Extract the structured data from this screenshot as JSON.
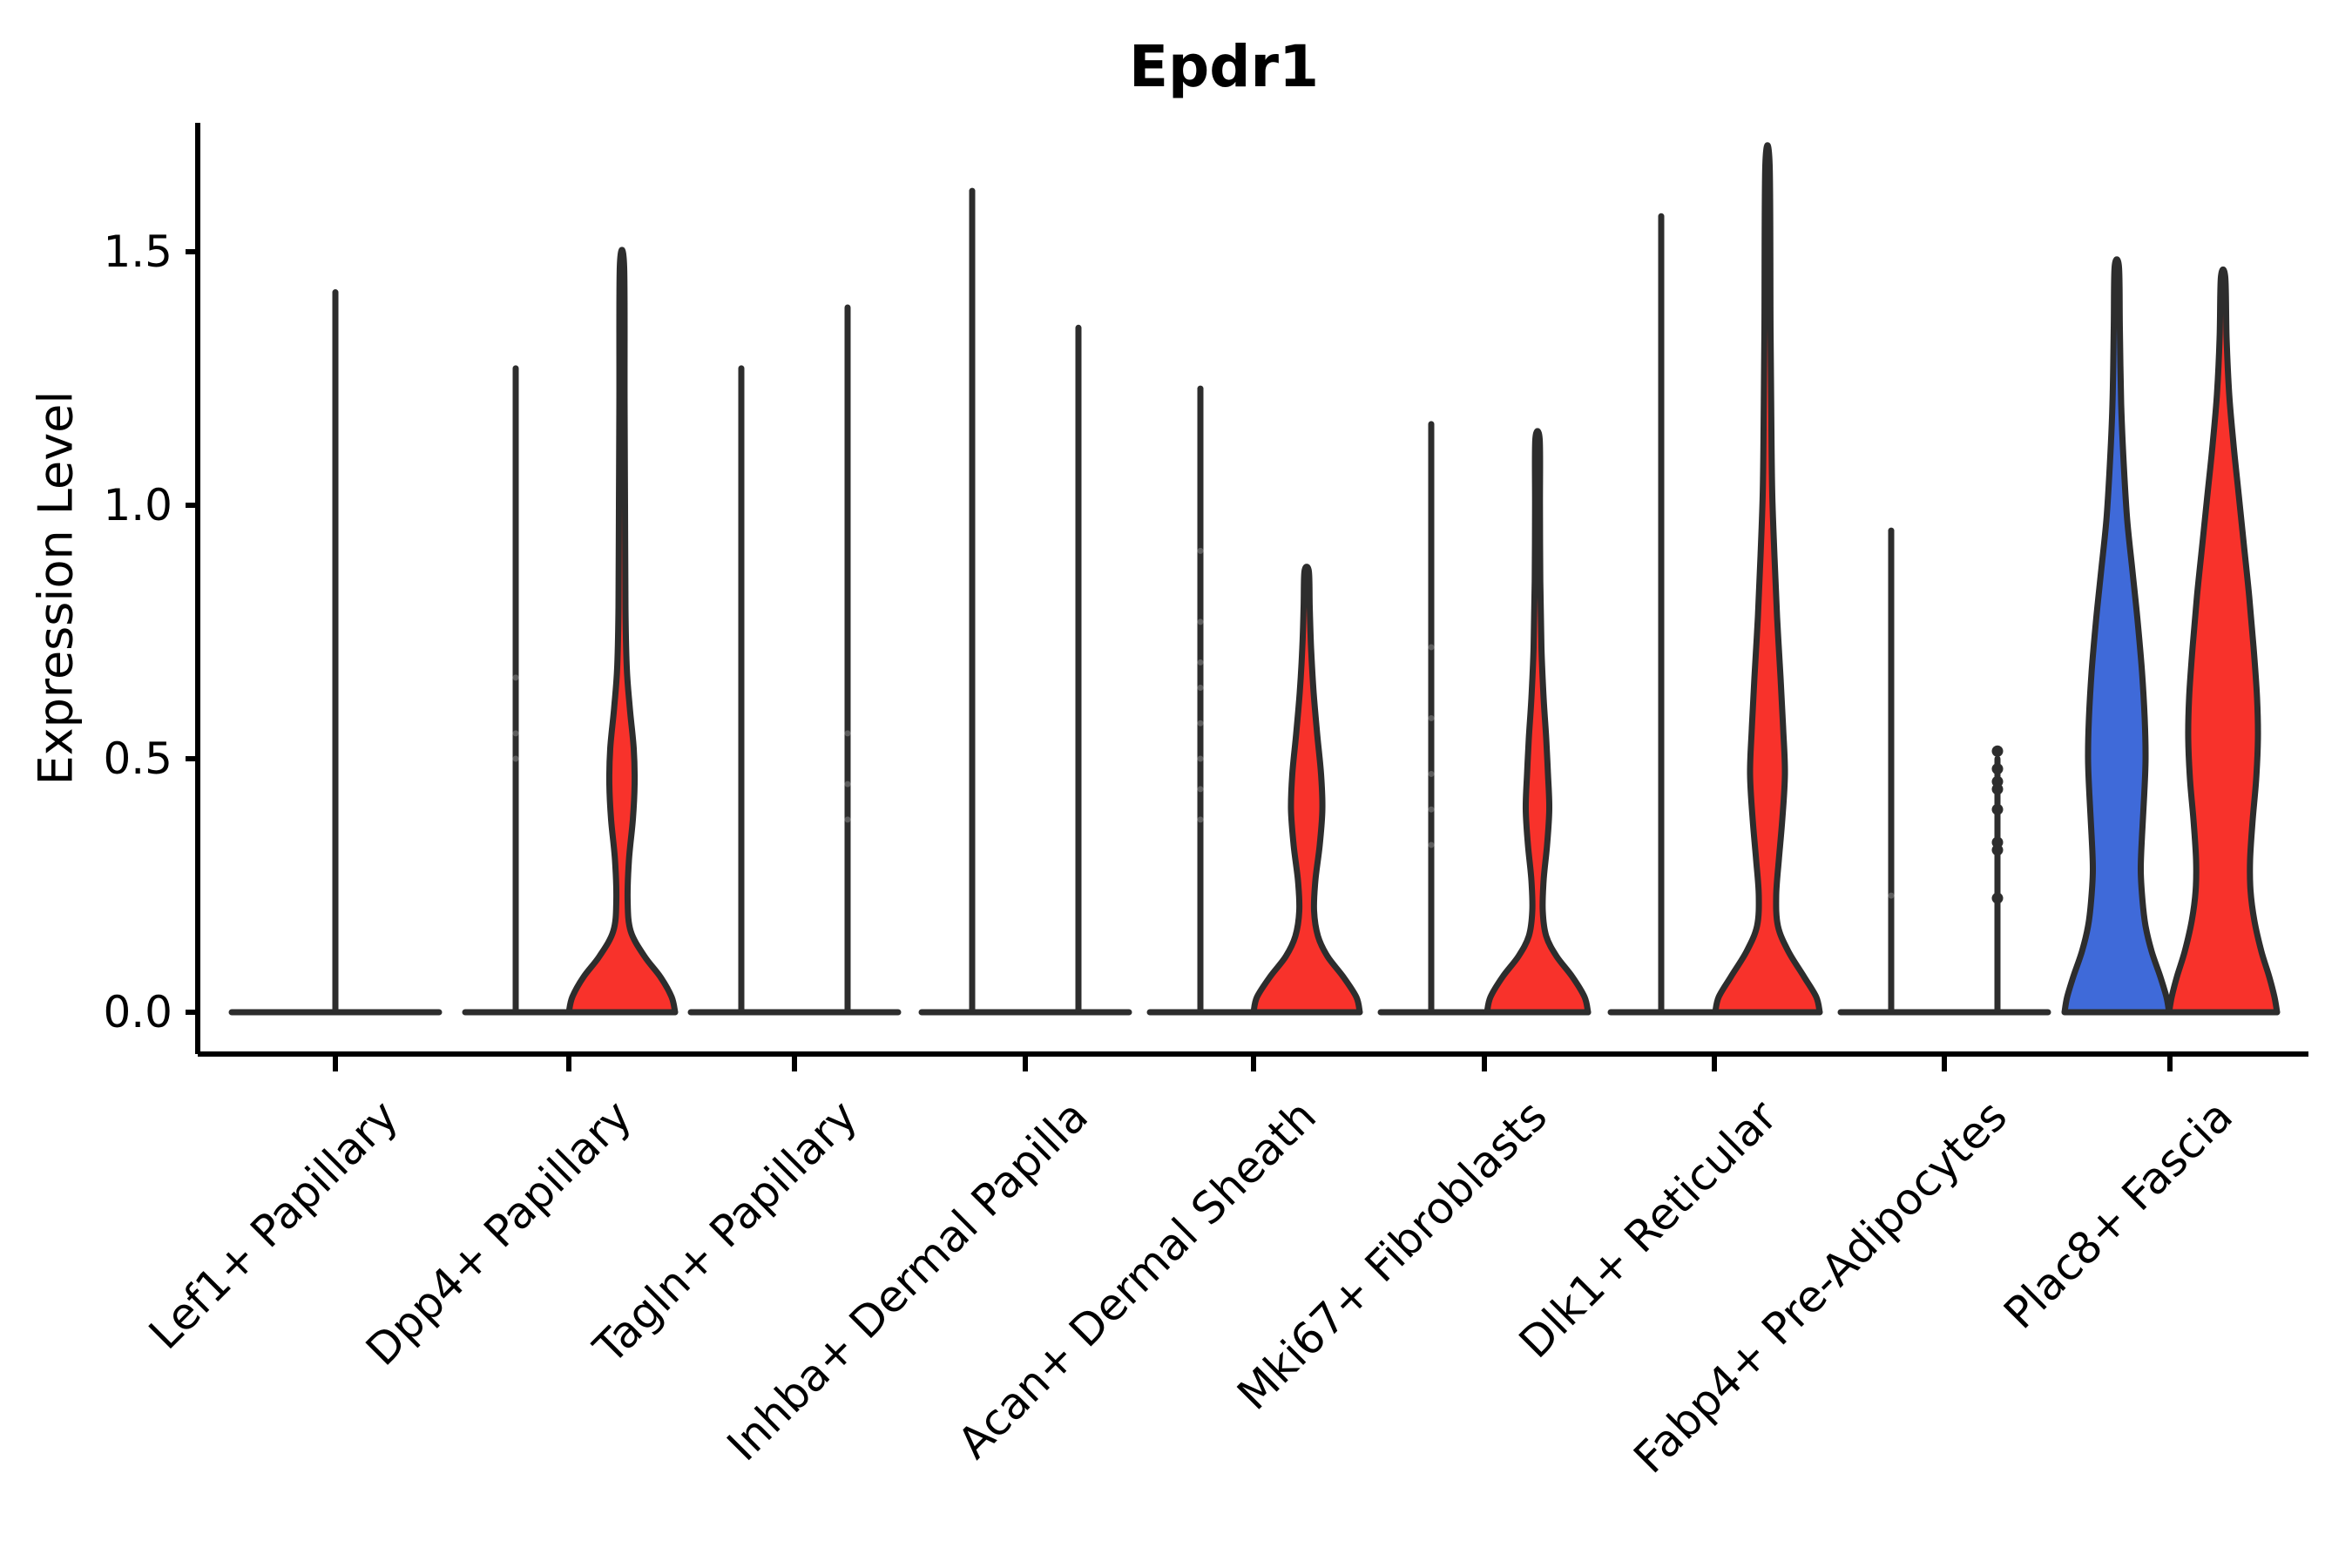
{
  "title": "Epdr1",
  "colors": {
    "red": "#F8322B",
    "blue": "#3F6AD9",
    "outline": "#2D2D2D",
    "axis": "#000000",
    "faint_point": "#666666"
  },
  "chart_data": {
    "type": "violin",
    "title": "Epdr1",
    "xlabel": "",
    "ylabel": "Expression Level",
    "yticks": [
      "0.0",
      "0.5",
      "1.0",
      "1.5"
    ],
    "ytick_values": [
      0.0,
      0.5,
      1.0,
      1.5
    ],
    "ylim": [
      0.0,
      1.76
    ],
    "grid": false,
    "legend": "none",
    "categories": [
      "Lef1+ Papillary",
      "Dpp4+ Papillary",
      "Tagln+ Papillary",
      "Inhba+ Dermal Papilla",
      "Acan+ Dermal Sheath",
      "Mki67+ Fibroblasts",
      "Dlk1+ Reticular",
      "Fabp4+ Pre-Adipocytes",
      "Plac8+ Fascia"
    ],
    "violins": [
      {
        "category_index": 0,
        "side": "center",
        "kind": "spike",
        "color": null,
        "max_expression": 1.42,
        "points": [],
        "points_style": null
      },
      {
        "category_index": 1,
        "side": "left",
        "kind": "spike",
        "color": null,
        "max_expression": 1.27,
        "points": [
          0.66,
          0.55,
          0.5
        ],
        "points_style": "faint"
      },
      {
        "category_index": 1,
        "side": "right",
        "kind": "violin",
        "color": "red",
        "max_expression": 1.47,
        "profile": [
          [
            0,
            61
          ],
          [
            0.03,
            57
          ],
          [
            0.07,
            44
          ],
          [
            0.11,
            26
          ],
          [
            0.16,
            10
          ],
          [
            0.22,
            6.5
          ],
          [
            0.3,
            8
          ],
          [
            0.38,
            12.5
          ],
          [
            0.45,
            14.5
          ],
          [
            0.52,
            13.5
          ],
          [
            0.6,
            9
          ],
          [
            0.68,
            5.5
          ],
          [
            0.8,
            4
          ],
          [
            1.0,
            3.5
          ],
          [
            1.2,
            3
          ],
          [
            1.47,
            2.5
          ]
        ],
        "points": [],
        "points_style": null
      },
      {
        "category_index": 2,
        "side": "left",
        "kind": "spike",
        "color": null,
        "max_expression": 1.27,
        "points": [],
        "points_style": null
      },
      {
        "category_index": 2,
        "side": "right",
        "kind": "spike",
        "color": null,
        "max_expression": 1.39,
        "points": [
          0.55,
          0.45,
          0.38
        ],
        "points_style": "faint"
      },
      {
        "category_index": 3,
        "side": "left",
        "kind": "spike",
        "color": null,
        "max_expression": 1.62,
        "points": [],
        "points_style": null
      },
      {
        "category_index": 3,
        "side": "right",
        "kind": "spike",
        "color": null,
        "max_expression": 1.35,
        "points": [],
        "points_style": null
      },
      {
        "category_index": 4,
        "side": "left",
        "kind": "spike",
        "color": null,
        "max_expression": 1.23,
        "points": [
          0.91,
          0.77,
          0.69,
          0.64,
          0.57,
          0.5,
          0.44,
          0.38
        ],
        "points_style": "faint"
      },
      {
        "category_index": 4,
        "side": "right",
        "kind": "violin",
        "color": "red",
        "max_expression": 0.87,
        "profile": [
          [
            0,
            61
          ],
          [
            0.03,
            57
          ],
          [
            0.07,
            42
          ],
          [
            0.11,
            24
          ],
          [
            0.15,
            13
          ],
          [
            0.2,
            8.5
          ],
          [
            0.26,
            10
          ],
          [
            0.33,
            15
          ],
          [
            0.4,
            18
          ],
          [
            0.47,
            16.5
          ],
          [
            0.55,
            12
          ],
          [
            0.63,
            8
          ],
          [
            0.72,
            5
          ],
          [
            0.8,
            3.5
          ],
          [
            0.87,
            2.5
          ]
        ],
        "points": [],
        "points_style": null
      },
      {
        "category_index": 5,
        "side": "left",
        "kind": "spike",
        "color": null,
        "max_expression": 1.16,
        "points": [
          0.72,
          0.58,
          0.47,
          0.4,
          0.33
        ],
        "points_style": "faint"
      },
      {
        "category_index": 5,
        "side": "right",
        "kind": "violin",
        "color": "red",
        "max_expression": 1.13,
        "profile": [
          [
            0,
            58
          ],
          [
            0.03,
            54
          ],
          [
            0.07,
            40
          ],
          [
            0.11,
            22
          ],
          [
            0.15,
            10
          ],
          [
            0.2,
            6
          ],
          [
            0.26,
            7
          ],
          [
            0.33,
            11
          ],
          [
            0.4,
            13.5
          ],
          [
            0.47,
            12
          ],
          [
            0.54,
            10
          ],
          [
            0.62,
            7
          ],
          [
            0.72,
            4.5
          ],
          [
            0.85,
            3.2
          ],
          [
            1.0,
            2.8
          ],
          [
            1.13,
            2.5
          ]
        ],
        "points": [],
        "points_style": null
      },
      {
        "category_index": 6,
        "side": "left",
        "kind": "spike",
        "color": null,
        "max_expression": 1.57,
        "points": [],
        "points_style": null
      },
      {
        "category_index": 6,
        "side": "right",
        "kind": "violin",
        "color": "red",
        "max_expression": 1.67,
        "profile": [
          [
            0,
            60
          ],
          [
            0.03,
            56
          ],
          [
            0.07,
            42
          ],
          [
            0.12,
            24
          ],
          [
            0.17,
            12
          ],
          [
            0.23,
            10
          ],
          [
            0.3,
            13
          ],
          [
            0.38,
            17
          ],
          [
            0.47,
            20
          ],
          [
            0.56,
            18
          ],
          [
            0.66,
            15
          ],
          [
            0.78,
            11
          ],
          [
            0.9,
            8
          ],
          [
            1.02,
            5.5
          ],
          [
            1.15,
            4.5
          ],
          [
            1.35,
            3.5
          ],
          [
            1.67,
            2.5
          ]
        ],
        "points": [],
        "points_style": null
      },
      {
        "category_index": 7,
        "side": "left",
        "kind": "spike",
        "color": null,
        "max_expression": 0.95,
        "points": [
          0.23
        ],
        "points_style": "faint"
      },
      {
        "category_index": 7,
        "side": "right",
        "kind": "spike",
        "color": null,
        "max_expression": 0.5,
        "points": [
          0.515,
          0.48,
          0.455,
          0.44,
          0.4,
          0.335,
          0.32,
          0.225
        ],
        "points_style": "dark"
      },
      {
        "category_index": 8,
        "side": "left",
        "kind": "violin",
        "color": "blue",
        "max_expression": 1.47,
        "profile": [
          [
            0,
            60
          ],
          [
            0.03,
            57
          ],
          [
            0.07,
            50
          ],
          [
            0.12,
            40
          ],
          [
            0.17,
            33
          ],
          [
            0.22,
            29.5
          ],
          [
            0.28,
            27.5
          ],
          [
            0.35,
            29
          ],
          [
            0.43,
            31.5
          ],
          [
            0.5,
            33
          ],
          [
            0.58,
            32
          ],
          [
            0.67,
            29
          ],
          [
            0.77,
            24
          ],
          [
            0.87,
            18
          ],
          [
            0.97,
            12
          ],
          [
            1.08,
            8
          ],
          [
            1.2,
            5
          ],
          [
            1.35,
            3.5
          ],
          [
            1.47,
            2.5
          ]
        ],
        "points": [],
        "points_style": null
      },
      {
        "category_index": 8,
        "side": "right",
        "kind": "violin",
        "color": "red",
        "max_expression": 1.45,
        "profile": [
          [
            0,
            62
          ],
          [
            0.03,
            59
          ],
          [
            0.07,
            53
          ],
          [
            0.12,
            44
          ],
          [
            0.18,
            36
          ],
          [
            0.24,
            31.5
          ],
          [
            0.3,
            31
          ],
          [
            0.38,
            34
          ],
          [
            0.46,
            38
          ],
          [
            0.54,
            40
          ],
          [
            0.62,
            39
          ],
          [
            0.72,
            35
          ],
          [
            0.82,
            30
          ],
          [
            0.92,
            24
          ],
          [
            1.02,
            18
          ],
          [
            1.12,
            12
          ],
          [
            1.22,
            7
          ],
          [
            1.33,
            4
          ],
          [
            1.45,
            2.5
          ]
        ],
        "points": [],
        "points_style": null
      }
    ]
  }
}
